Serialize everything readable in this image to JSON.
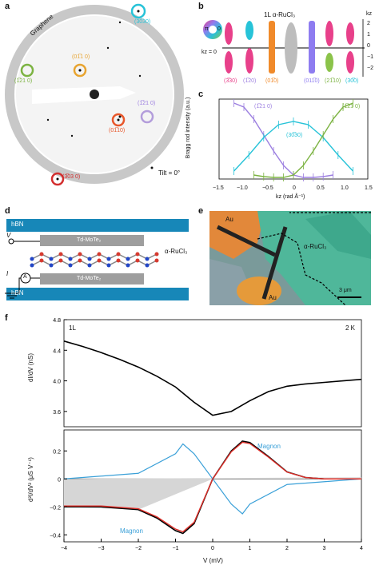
{
  "panels": {
    "a": {
      "label": "a",
      "graphene_label": "Graphene",
      "tilt_label": "Tilt = 0°",
      "spots": [
        {
          "label": "(30̅30)",
          "color": "#27c3d8"
        },
        {
          "label": "(01̅1 0)",
          "color": "#e8a430"
        },
        {
          "label": "(1̅21 0)",
          "color": "#7cb342"
        },
        {
          "label": "(1̅21 0)",
          "color": "#b39ddb"
        },
        {
          "label": "(01̅10)",
          "color": "#e8572b"
        },
        {
          "label": "(3̅03 0)",
          "color": "#d32f2f"
        }
      ]
    },
    "b": {
      "label": "b",
      "title": "1L α-RuCl₃",
      "pi_label": "π",
      "zero_label": "0",
      "kz_label": "kz = 0",
      "axis_label": "kz",
      "ticks": [
        "2",
        "1",
        "0",
        "−1",
        "−2"
      ],
      "rods": [
        {
          "label": "(3̅30)",
          "color": "#e8408a"
        },
        {
          "label": "(1̅20)",
          "color": "#b39ddb"
        },
        {
          "label": "(01̅0)",
          "color": "#f08a2a"
        },
        {
          "label": "",
          "color": "#bdbdbd"
        },
        {
          "label": "(011̅0)",
          "color": "#8e7cf0"
        },
        {
          "label": "(21̅10)",
          "color": "#8bc34a"
        },
        {
          "label": "(30̅0)",
          "color": "#2bc0d6"
        }
      ]
    },
    "c": {
      "label": "c",
      "ylabel": "Bragg rod intensity (a.u.)",
      "xlabel": "kz (rad Å⁻¹)",
      "xticks": [
        "−1.5",
        "−1.0",
        "−0.5",
        "0",
        "0.5",
        "1.0",
        "1.5"
      ],
      "series_labels": [
        {
          "text": "(1̅21 0)",
          "color": "#9c7fe0"
        },
        {
          "text": "(30̅30)",
          "color": "#27c3d8"
        },
        {
          "text": "(1̅21 0)",
          "color": "#7cb342"
        }
      ]
    },
    "d": {
      "label": "d",
      "hbn_top": "hBN",
      "hbn_bottom": "hBN",
      "mote_top": "Td-MoTe₂",
      "mote_bottom": "Td-MoTe₂",
      "rucl_label": "α-RuCl₃",
      "v_label": "V",
      "i_label": "I",
      "ammeter_label": "A"
    },
    "e": {
      "label": "e",
      "au_top": "Au",
      "au_bottom": "Au",
      "rucl_label": "α-RuCl₃",
      "scale_label": "3 μm"
    },
    "f": {
      "label": "f",
      "layer_label": "1L",
      "temp_label": "2 K",
      "top_ylabel": "dI/dV (nS)",
      "bottom_ylabel": "d²I/dV² (μS V⁻¹)",
      "xlabel": "V (mV)",
      "magnon_top": "Magnon",
      "magnon_bottom": "Magnon",
      "top_yticks": [
        "4.8",
        "4.4",
        "4.0",
        "3.6"
      ],
      "bottom_yticks": [
        "0.2",
        "0",
        "−0.2",
        "−0.4"
      ],
      "xticks": [
        "−4",
        "−3",
        "−2",
        "−1",
        "0",
        "1",
        "2",
        "3",
        "4"
      ]
    }
  },
  "chart_data": [
    {
      "type": "line",
      "panel": "c",
      "xlabel": "kz (rad Å⁻¹)",
      "ylabel": "Bragg rod intensity (a.u.)",
      "xlim": [
        -1.5,
        1.5
      ],
      "series": [
        {
          "name": "(1̅21 0)",
          "color": "#9c7fe0",
          "x": [
            -1.2,
            -1.0,
            -0.8,
            -0.6,
            -0.4,
            -0.2,
            0,
            0.2,
            0.4,
            0.6,
            0.8
          ],
          "y": [
            0.95,
            0.9,
            0.75,
            0.55,
            0.35,
            0.17,
            0.05,
            0.02,
            0.02,
            0.03,
            0.05
          ]
        },
        {
          "name": "(30̅30)",
          "color": "#27c3d8",
          "x": [
            -1.2,
            -0.9,
            -0.6,
            -0.3,
            0,
            0.3,
            0.6,
            0.9,
            1.2
          ],
          "y": [
            0.1,
            0.3,
            0.52,
            0.68,
            0.72,
            0.68,
            0.52,
            0.3,
            0.1
          ]
        },
        {
          "name": "(1̅21 0)",
          "color": "#7cb342",
          "x": [
            -0.8,
            -0.6,
            -0.4,
            -0.2,
            0,
            0.2,
            0.4,
            0.6,
            0.8,
            1.0,
            1.2
          ],
          "y": [
            0.05,
            0.03,
            0.02,
            0.02,
            0.05,
            0.17,
            0.35,
            0.55,
            0.75,
            0.9,
            0.95
          ]
        }
      ]
    },
    {
      "type": "line",
      "panel": "f-top",
      "xlabel": "V (mV)",
      "ylabel": "dI/dV (nS)",
      "xlim": [
        -4,
        4
      ],
      "ylim": [
        3.4,
        4.8
      ],
      "series": [
        {
          "name": "",
          "color": "#000000",
          "x": [
            -4,
            -3.5,
            -3,
            -2.5,
            -2,
            -1.5,
            -1,
            -0.5,
            0,
            0.5,
            1,
            1.5,
            2,
            2.5,
            3,
            3.5,
            4
          ],
          "y": [
            4.52,
            4.45,
            4.37,
            4.28,
            4.18,
            4.06,
            3.92,
            3.72,
            3.55,
            3.6,
            3.74,
            3.86,
            3.93,
            3.96,
            3.98,
            4.0,
            4.02
          ]
        }
      ]
    },
    {
      "type": "line",
      "panel": "f-bottom",
      "xlabel": "V (mV)",
      "ylabel": "d²I/dV² (μS V⁻¹)",
      "xlim": [
        -4,
        4
      ],
      "ylim": [
        -0.45,
        0.35
      ],
      "series": [
        {
          "name": "",
          "color": "#000000",
          "x": [
            -4,
            -3,
            -2,
            -1.5,
            -1,
            -0.8,
            -0.5,
            0,
            0.5,
            0.8,
            1,
            1.5,
            2,
            2.5,
            3,
            4
          ],
          "y": [
            -0.2,
            -0.2,
            -0.22,
            -0.28,
            -0.37,
            -0.39,
            -0.32,
            0.0,
            0.2,
            0.27,
            0.26,
            0.16,
            0.05,
            0.01,
            0.0,
            0.0
          ]
        },
        {
          "name": "Magnon",
          "color": "#3aa0d8",
          "x": [
            -4,
            -2,
            -1,
            -0.8,
            -0.5,
            0,
            0.5,
            0.8,
            1,
            2,
            4
          ],
          "y": [
            0.0,
            0.04,
            0.18,
            0.25,
            0.18,
            0.0,
            -0.18,
            -0.25,
            -0.18,
            -0.04,
            0.0
          ]
        }
      ]
    }
  ]
}
